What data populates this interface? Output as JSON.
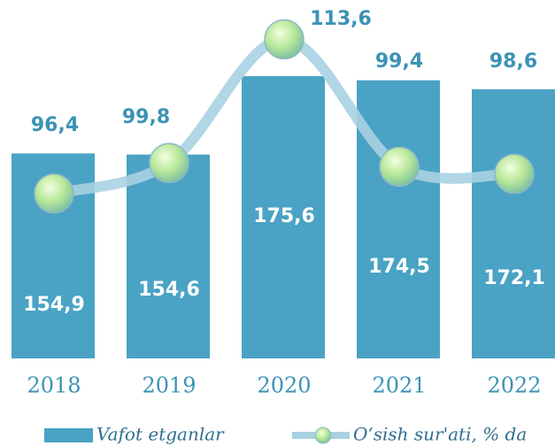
{
  "chart_data": {
    "type": "bar",
    "categories": [
      "2018",
      "2019",
      "2020",
      "2021",
      "2022"
    ],
    "series": [
      {
        "name": "Vafot etganlar",
        "type": "bar",
        "color": "#4aa3c4",
        "values": [
          154.9,
          154.6,
          175.6,
          174.5,
          172.1
        ],
        "value_labels": [
          "154,9",
          "154,6",
          "175,6",
          "174,5",
          "172,1"
        ]
      },
      {
        "name": "O‘sish sur'ati, % da",
        "type": "line",
        "axis": "y2",
        "color": "#a8d2e2",
        "values": [
          96.4,
          99.8,
          113.6,
          99.4,
          98.6
        ],
        "value_labels": [
          "96,4",
          "99,8",
          "113,6",
          "99,4",
          "98,6"
        ]
      }
    ],
    "ylim": [
      100,
      196
    ],
    "y2lim": [
      78,
      118
    ],
    "legend": "bottom"
  }
}
